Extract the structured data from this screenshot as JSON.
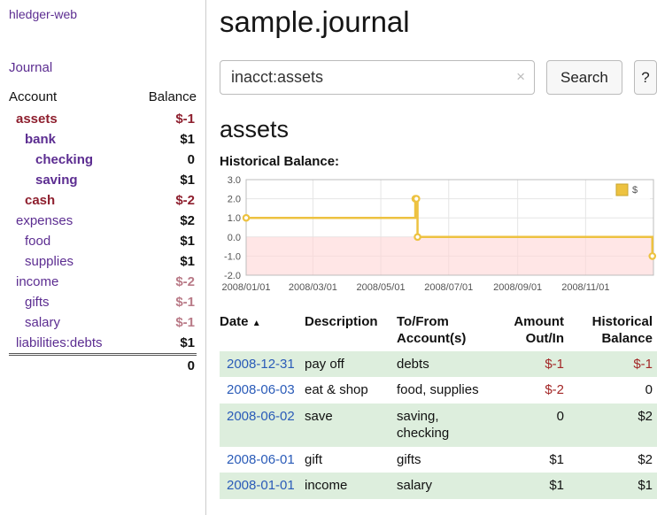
{
  "colors": {
    "purple": "#5c2d91",
    "linkBlue": "#2a5bb8",
    "negStrong": "#8e1f2e",
    "negMuted": "#b97a87",
    "tableNeg": "#a32727",
    "rowGreen": "#ddeedd"
  },
  "sidebar": {
    "app_title": "hledger-web",
    "journal_link": "Journal",
    "headers": {
      "account": "Account",
      "balance": "Balance"
    },
    "accounts": [
      {
        "name": "assets",
        "balance": "$-1"
      },
      {
        "name": "bank",
        "balance": "$1"
      },
      {
        "name": "checking",
        "balance": "0"
      },
      {
        "name": "saving",
        "balance": "$1"
      },
      {
        "name": "cash",
        "balance": "$-2"
      },
      {
        "name": "expenses",
        "balance": "$2"
      },
      {
        "name": "food",
        "balance": "$1"
      },
      {
        "name": "supplies",
        "balance": "$1"
      },
      {
        "name": "income",
        "balance": "$-2"
      },
      {
        "name": "gifts",
        "balance": "$-1"
      },
      {
        "name": "salary",
        "balance": "$-1"
      },
      {
        "name": "liabilities:debts",
        "balance": "$1"
      }
    ],
    "total": "0"
  },
  "main": {
    "title": "sample.journal",
    "search": {
      "value": "inacct:assets",
      "clear_icon": "×",
      "button": "Search",
      "help_button": "?"
    },
    "account_heading": "assets",
    "chart_title": "Historical Balance:"
  },
  "chart_data": {
    "type": "line",
    "step": true,
    "legend": "$",
    "x_ticks": [
      "2008/01/01",
      "2008/03/01",
      "2008/05/01",
      "2008/07/01",
      "2008/09/01",
      "2008/11/01"
    ],
    "y_ticks": [
      3.0,
      2.0,
      1.0,
      0.0,
      -1.0,
      -2.0
    ],
    "xlim": [
      "2008-01-01",
      "2009-01-01"
    ],
    "ylim": [
      -2,
      3
    ],
    "series": [
      {
        "name": "$",
        "points": [
          {
            "date": "2008-01-01",
            "value": 1
          },
          {
            "date": "2008-06-01",
            "value": 2
          },
          {
            "date": "2008-06-02",
            "value": 2
          },
          {
            "date": "2008-06-03",
            "value": 0
          },
          {
            "date": "2008-12-31",
            "value": -1
          }
        ]
      }
    ],
    "line_color": "#edc240",
    "negative_region_color": "#ffd6d6"
  },
  "register": {
    "headers": {
      "date": "Date",
      "sort_icon": "▲",
      "description": "Description",
      "accounts_l1": "To/From",
      "accounts_l2": "Account(s)",
      "amount_l1": "Amount",
      "amount_l2": "Out/In",
      "balance_l1": "Historical",
      "balance_l2": "Balance"
    },
    "rows": [
      {
        "date": "2008-12-31",
        "description": "pay off",
        "accounts": "debts",
        "amount": "$-1",
        "balance": "$-1"
      },
      {
        "date": "2008-06-03",
        "description": "eat & shop",
        "accounts": "food, supplies",
        "amount": "$-2",
        "balance": "0"
      },
      {
        "date": "2008-06-02",
        "description": "save",
        "accounts": "saving,\nchecking",
        "amount": "0",
        "balance": "$2"
      },
      {
        "date": "2008-06-01",
        "description": "gift",
        "accounts": "gifts",
        "amount": "$1",
        "balance": "$2"
      },
      {
        "date": "2008-01-01",
        "description": "income",
        "accounts": "salary",
        "amount": "$1",
        "balance": "$1"
      }
    ]
  }
}
